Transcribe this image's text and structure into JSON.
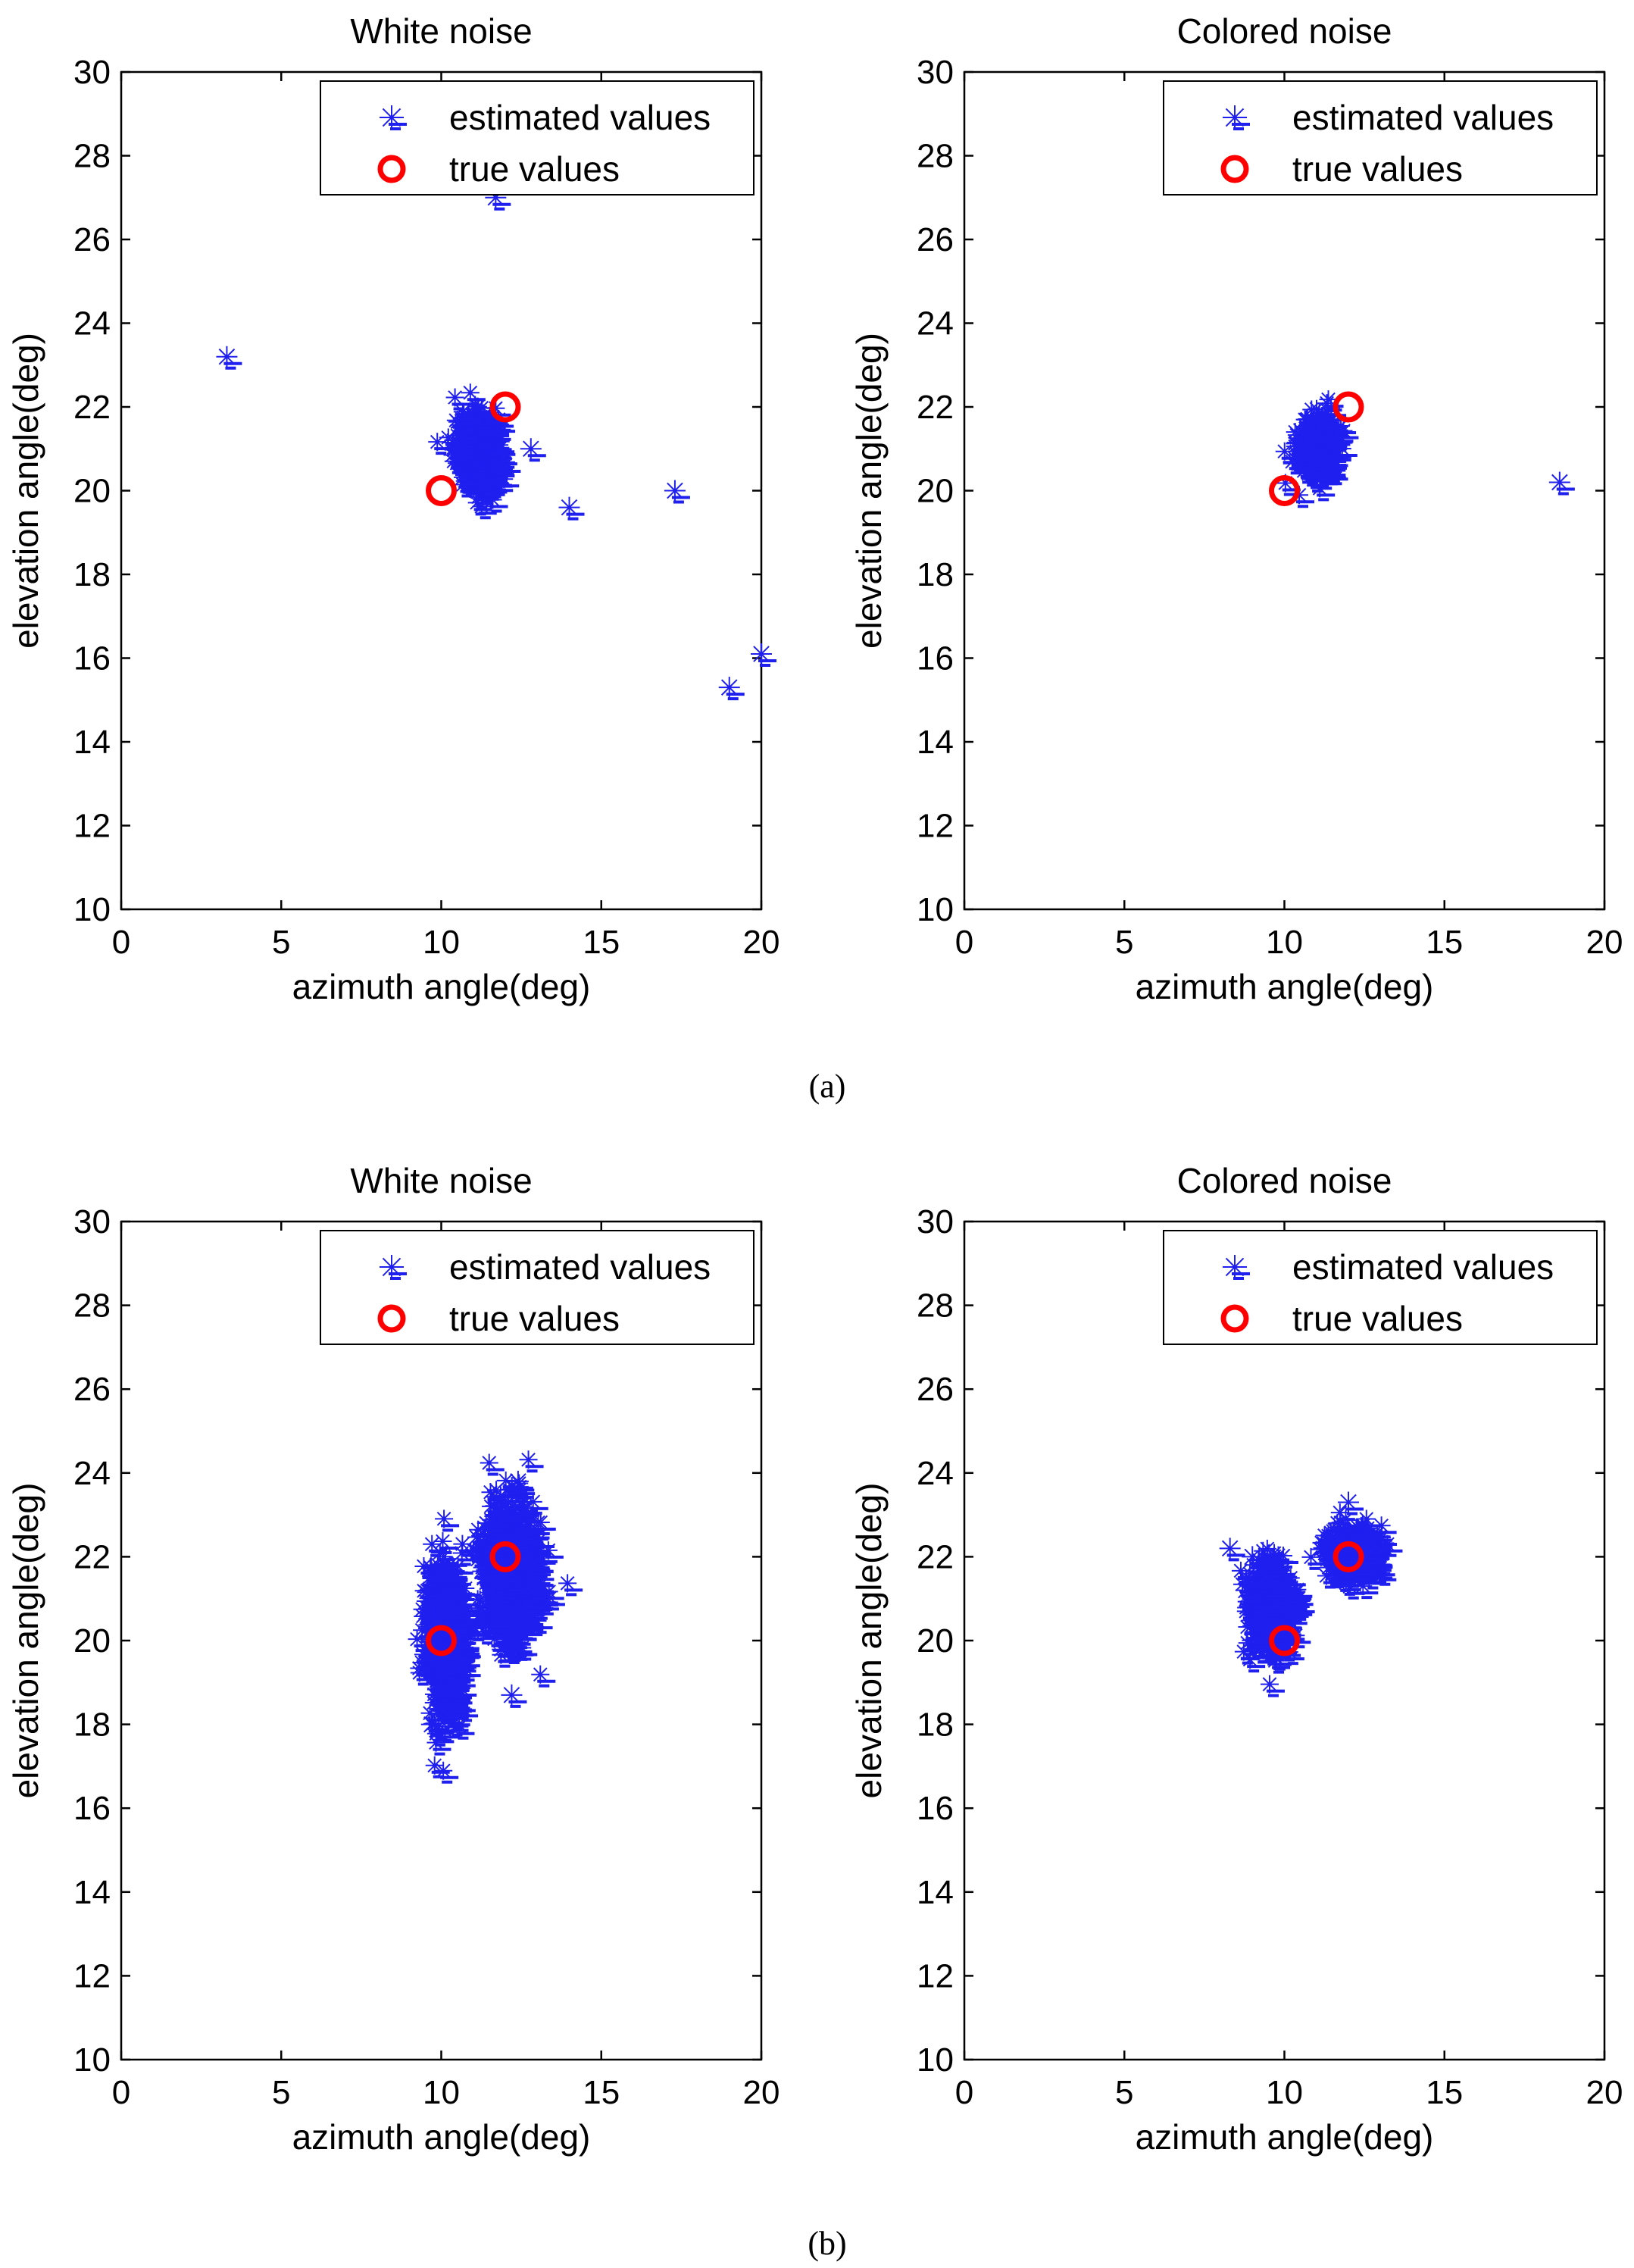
{
  "figure": {
    "captions": [
      "(a)",
      "(b)"
    ],
    "colors": {
      "estimated": "#1f1ff0",
      "true": "#ff0000",
      "axis": "#000000"
    }
  },
  "chart_data": [
    {
      "type": "scatter",
      "panel": "(a)",
      "title": "White noise",
      "xlabel": "azimuth angle(deg)",
      "ylabel": "elevation angle(deg)",
      "xlim": [
        0,
        20
      ],
      "ylim": [
        10,
        30
      ],
      "xticks": [
        0,
        5,
        10,
        15,
        20
      ],
      "yticks": [
        10,
        12,
        14,
        16,
        18,
        20,
        22,
        24,
        26,
        28,
        30
      ],
      "legend": {
        "position": "top-right",
        "entries": [
          "estimated values",
          "true values"
        ]
      },
      "series": [
        {
          "name": "true values",
          "marker": "circle",
          "points": [
            [
              10,
              20
            ],
            [
              12,
              22
            ]
          ]
        },
        {
          "name": "estimated values",
          "marker": "star",
          "outliers": [
            [
              3.3,
              23.2
            ],
            [
              12.8,
              21.0
            ],
            [
              14.0,
              19.6
            ],
            [
              17.3,
              20.0
            ],
            [
              19.0,
              15.3
            ],
            [
              20.0,
              16.1
            ],
            [
              11.7,
              27.0
            ]
          ],
          "clusters": [
            {
              "center": [
                11.1,
                21.0
              ],
              "spread": [
                0.35,
                0.45
              ],
              "n": 320
            }
          ]
        }
      ]
    },
    {
      "type": "scatter",
      "panel": "(a)",
      "title": "Colored noise",
      "xlabel": "azimuth angle(deg)",
      "ylabel": "elevation angle(deg)",
      "xlim": [
        0,
        20
      ],
      "ylim": [
        10,
        30
      ],
      "xticks": [
        0,
        5,
        10,
        15,
        20
      ],
      "yticks": [
        10,
        12,
        14,
        16,
        18,
        20,
        22,
        24,
        26,
        28,
        30
      ],
      "legend": {
        "position": "top-right",
        "entries": [
          "estimated values",
          "true values"
        ]
      },
      "series": [
        {
          "name": "true values",
          "marker": "circle",
          "points": [
            [
              10,
              20
            ],
            [
              12,
              22
            ]
          ]
        },
        {
          "name": "estimated values",
          "marker": "star",
          "outliers": [
            [
              18.6,
              20.2
            ]
          ],
          "clusters": [
            {
              "center": [
                11.0,
                21.1
              ],
              "spread": [
                0.3,
                0.4
              ],
              "n": 260
            }
          ]
        }
      ]
    },
    {
      "type": "scatter",
      "panel": "(b)",
      "title": "White noise",
      "xlabel": "azimuth angle(deg)",
      "ylabel": "elevation angle(deg)",
      "xlim": [
        0,
        20
      ],
      "ylim": [
        10,
        30
      ],
      "xticks": [
        0,
        5,
        10,
        15,
        20
      ],
      "yticks": [
        10,
        12,
        14,
        16,
        18,
        20,
        22,
        24,
        26,
        28,
        30
      ],
      "legend": {
        "position": "top-right",
        "entries": [
          "estimated values",
          "true values"
        ]
      },
      "series": [
        {
          "name": "true values",
          "marker": "circle",
          "points": [
            [
              10,
              20
            ],
            [
              12,
              22
            ]
          ]
        },
        {
          "name": "estimated values",
          "marker": "star",
          "outliers": [
            [
              9.7,
              18.0
            ],
            [
              12.2,
              18.7
            ],
            [
              12.4,
              23.8
            ],
            [
              12.2,
              19.8
            ],
            [
              9.9,
              21.8
            ]
          ],
          "clusters": [
            {
              "center": [
                10.1,
                20.0
              ],
              "spread": [
                0.3,
                0.9
              ],
              "n": 600
            },
            {
              "center": [
                12.1,
                21.7
              ],
              "spread": [
                0.45,
                0.8
              ],
              "n": 600
            }
          ]
        }
      ]
    },
    {
      "type": "scatter",
      "panel": "(b)",
      "title": "Colored noise",
      "xlabel": "azimuth angle(deg)",
      "ylabel": "elevation angle(deg)",
      "xlim": [
        0,
        20
      ],
      "ylim": [
        10,
        30
      ],
      "xticks": [
        0,
        5,
        10,
        15,
        20
      ],
      "yticks": [
        10,
        12,
        14,
        16,
        18,
        20,
        22,
        24,
        26,
        28,
        30
      ],
      "legend": {
        "position": "top-right",
        "entries": [
          "estimated values",
          "true values"
        ]
      },
      "series": [
        {
          "name": "true values",
          "marker": "circle",
          "points": [
            [
              10,
              20
            ],
            [
              12,
              22
            ]
          ]
        },
        {
          "name": "estimated values",
          "marker": "star",
          "outliers": [
            [
              8.3,
              22.2
            ],
            [
              8.8,
              21.2
            ],
            [
              9.0,
              22.0
            ],
            [
              12.0,
              23.3
            ]
          ],
          "clusters": [
            {
              "center": [
                9.5,
                20.8
              ],
              "spread": [
                0.35,
                0.55
              ],
              "n": 380
            },
            {
              "center": [
                12.1,
                22.1
              ],
              "spread": [
                0.4,
                0.3
              ],
              "n": 360
            }
          ]
        }
      ]
    }
  ]
}
